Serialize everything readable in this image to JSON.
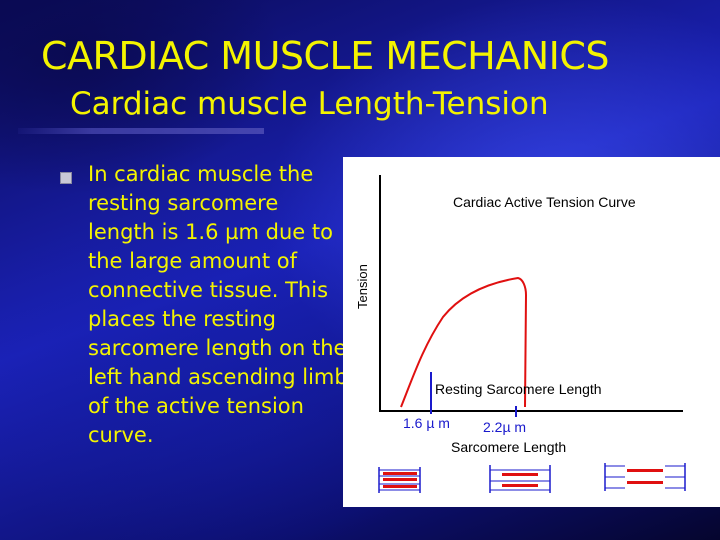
{
  "slide": {
    "title": "CARDIAC  MUSCLE MECHANICS",
    "subtitle": "Cardiac  muscle Length-Tension",
    "body_lines": [
      "In cardiac muscle the",
      "resting sarcomere",
      "length is 1.6 µm due to",
      "the large amount of",
      "connective tissue.  This",
      "places the resting",
      "sarcomere length on the",
      "left hand ascending limb",
      "of the active tension",
      "curve."
    ]
  },
  "figure": {
    "title": "Cardiac Active Tension Curve",
    "y_axis_label": "Tension",
    "x_axis_label": "Sarcomere Length",
    "marker_left_label": "1.6 µ m",
    "marker_right_label": "2.2µ m",
    "annotation": "Resting Sarcomere Length",
    "colors": {
      "curve": "#e01010",
      "marker": "#1a1acc",
      "axis": "#000000"
    }
  }
}
